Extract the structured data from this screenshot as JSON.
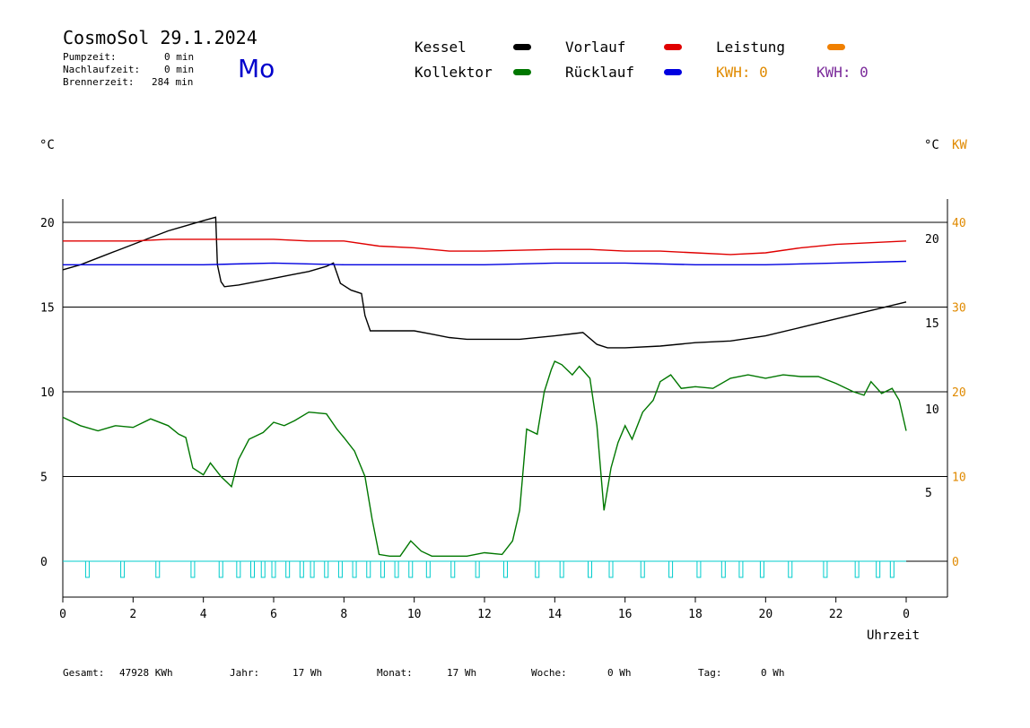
{
  "header": {
    "title": "CosmoSol 29.1.2024",
    "weekday": "Mo",
    "stats": [
      {
        "label": "Pumpzeit:",
        "value": "0 min"
      },
      {
        "label": "Nachlaufzeit:",
        "value": "0 min"
      },
      {
        "label": "Brennerzeit:",
        "value": "284 min"
      }
    ]
  },
  "legend": {
    "kessel": {
      "label": "Kessel",
      "color": "#000000"
    },
    "vorlauf": {
      "label": "Vorlauf",
      "color": "#e00000"
    },
    "leistung": {
      "label": "Leistung",
      "color": "#f08000"
    },
    "kollektor": {
      "label": "Kollektor",
      "color": "#007700"
    },
    "ruecklauf": {
      "label": "Rücklauf",
      "color": "#0000e0"
    },
    "kwh_orange": "KWH: 0",
    "kwh_purple": "KWH: 0"
  },
  "units": {
    "left": "°C",
    "right_c": "°C",
    "right_kw": "KW"
  },
  "footer": [
    {
      "label": "Gesamt:",
      "value": "47928 KWh"
    },
    {
      "label": "Jahr:",
      "value": "17 Wh"
    },
    {
      "label": "Monat:",
      "value": "17 Wh"
    },
    {
      "label": "Woche:",
      "value": "0 Wh"
    },
    {
      "label": "Tag:",
      "value": "0 Wh"
    }
  ],
  "chart_data": {
    "type": "line",
    "xlabel": "Uhrzeit",
    "x_ticks": [
      "0",
      "2",
      "4",
      "6",
      "8",
      "10",
      "12",
      "14",
      "16",
      "18",
      "20",
      "22",
      "0"
    ],
    "xlim": [
      0,
      24
    ],
    "y_left": {
      "ticks": [
        0,
        5,
        10,
        15,
        20
      ],
      "lim": [
        -2,
        22
      ]
    },
    "y_right_c": {
      "ticks": [
        5,
        10,
        15,
        20
      ]
    },
    "y_right_kw": {
      "ticks": [
        0,
        10,
        20,
        30,
        40
      ]
    },
    "series": [
      {
        "name": "Kessel",
        "color": "#000000",
        "points": [
          [
            0,
            17.2
          ],
          [
            0.5,
            17.5
          ],
          [
            1,
            17.9
          ],
          [
            1.5,
            18.3
          ],
          [
            2,
            18.7
          ],
          [
            2.5,
            19.1
          ],
          [
            3,
            19.5
          ],
          [
            3.5,
            19.8
          ],
          [
            4,
            20.1
          ],
          [
            4.35,
            20.3
          ],
          [
            4.4,
            17.5
          ],
          [
            4.5,
            16.5
          ],
          [
            4.6,
            16.2
          ],
          [
            5,
            16.3
          ],
          [
            5.5,
            16.5
          ],
          [
            6,
            16.7
          ],
          [
            6.5,
            16.9
          ],
          [
            7,
            17.1
          ],
          [
            7.5,
            17.4
          ],
          [
            7.7,
            17.6
          ],
          [
            7.9,
            16.4
          ],
          [
            8.2,
            16.0
          ],
          [
            8.5,
            15.8
          ],
          [
            8.6,
            14.5
          ],
          [
            8.75,
            13.6
          ],
          [
            9,
            13.6
          ],
          [
            9.5,
            13.6
          ],
          [
            10,
            13.6
          ],
          [
            10.5,
            13.4
          ],
          [
            11,
            13.2
          ],
          [
            11.5,
            13.1
          ],
          [
            12,
            13.1
          ],
          [
            13,
            13.1
          ],
          [
            14,
            13.3
          ],
          [
            14.8,
            13.5
          ],
          [
            15.2,
            12.8
          ],
          [
            15.5,
            12.6
          ],
          [
            16,
            12.6
          ],
          [
            17,
            12.7
          ],
          [
            18,
            12.9
          ],
          [
            19,
            13.0
          ],
          [
            20,
            13.3
          ],
          [
            21,
            13.8
          ],
          [
            22,
            14.3
          ],
          [
            23,
            14.8
          ],
          [
            24,
            15.3
          ]
        ]
      },
      {
        "name": "Vorlauf",
        "color": "#e00000",
        "points": [
          [
            0,
            18.9
          ],
          [
            2,
            18.9
          ],
          [
            3,
            19.0
          ],
          [
            4,
            19.0
          ],
          [
            5,
            19.0
          ],
          [
            6,
            19.0
          ],
          [
            7,
            18.9
          ],
          [
            8,
            18.9
          ],
          [
            9,
            18.6
          ],
          [
            10,
            18.5
          ],
          [
            11,
            18.3
          ],
          [
            12,
            18.3
          ],
          [
            14,
            18.4
          ],
          [
            15,
            18.4
          ],
          [
            16,
            18.3
          ],
          [
            17,
            18.3
          ],
          [
            18,
            18.2
          ],
          [
            19,
            18.1
          ],
          [
            20,
            18.2
          ],
          [
            21,
            18.5
          ],
          [
            22,
            18.7
          ],
          [
            23,
            18.8
          ],
          [
            24,
            18.9
          ]
        ]
      },
      {
        "name": "Rücklauf",
        "color": "#0000e0",
        "points": [
          [
            0,
            17.5
          ],
          [
            2,
            17.5
          ],
          [
            4,
            17.5
          ],
          [
            6,
            17.6
          ],
          [
            8,
            17.5
          ],
          [
            10,
            17.5
          ],
          [
            12,
            17.5
          ],
          [
            14,
            17.6
          ],
          [
            16,
            17.6
          ],
          [
            18,
            17.5
          ],
          [
            20,
            17.5
          ],
          [
            22,
            17.6
          ],
          [
            24,
            17.7
          ]
        ]
      },
      {
        "name": "Kollektor",
        "color": "#007700",
        "points": [
          [
            0,
            8.5
          ],
          [
            0.5,
            8.0
          ],
          [
            1,
            7.7
          ],
          [
            1.5,
            8.0
          ],
          [
            2,
            7.9
          ],
          [
            2.5,
            8.4
          ],
          [
            3,
            8.0
          ],
          [
            3.3,
            7.5
          ],
          [
            3.5,
            7.3
          ],
          [
            3.7,
            5.5
          ],
          [
            4,
            5.1
          ],
          [
            4.2,
            5.8
          ],
          [
            4.5,
            5.0
          ],
          [
            4.8,
            4.4
          ],
          [
            5,
            6.0
          ],
          [
            5.3,
            7.2
          ],
          [
            5.7,
            7.6
          ],
          [
            6,
            8.2
          ],
          [
            6.3,
            8.0
          ],
          [
            6.6,
            8.3
          ],
          [
            7,
            8.8
          ],
          [
            7.5,
            8.7
          ],
          [
            7.8,
            7.8
          ],
          [
            8,
            7.3
          ],
          [
            8.3,
            6.5
          ],
          [
            8.6,
            5.0
          ],
          [
            8.8,
            2.5
          ],
          [
            9,
            0.4
          ],
          [
            9.3,
            0.3
          ],
          [
            9.6,
            0.3
          ],
          [
            9.9,
            1.2
          ],
          [
            10.2,
            0.6
          ],
          [
            10.5,
            0.3
          ],
          [
            11,
            0.3
          ],
          [
            11.5,
            0.3
          ],
          [
            12,
            0.5
          ],
          [
            12.5,
            0.4
          ],
          [
            12.8,
            1.2
          ],
          [
            13,
            3.0
          ],
          [
            13.2,
            7.8
          ],
          [
            13.5,
            7.5
          ],
          [
            13.7,
            10.0
          ],
          [
            13.9,
            11.3
          ],
          [
            14,
            11.8
          ],
          [
            14.2,
            11.6
          ],
          [
            14.5,
            11.0
          ],
          [
            14.7,
            11.5
          ],
          [
            15,
            10.8
          ],
          [
            15.2,
            8.0
          ],
          [
            15.4,
            3.0
          ],
          [
            15.6,
            5.5
          ],
          [
            15.8,
            7.0
          ],
          [
            16,
            8.0
          ],
          [
            16.2,
            7.2
          ],
          [
            16.5,
            8.8
          ],
          [
            16.8,
            9.5
          ],
          [
            17,
            10.6
          ],
          [
            17.3,
            11.0
          ],
          [
            17.6,
            10.2
          ],
          [
            18,
            10.3
          ],
          [
            18.5,
            10.2
          ],
          [
            19,
            10.8
          ],
          [
            19.5,
            11.0
          ],
          [
            20,
            10.8
          ],
          [
            20.5,
            11.0
          ],
          [
            21,
            10.9
          ],
          [
            21.5,
            10.9
          ],
          [
            22,
            10.5
          ],
          [
            22.5,
            10.0
          ],
          [
            22.8,
            9.8
          ],
          [
            23,
            10.6
          ],
          [
            23.3,
            9.9
          ],
          [
            23.6,
            10.2
          ],
          [
            23.8,
            9.5
          ],
          [
            24,
            7.7
          ]
        ]
      }
    ],
    "pump_pulses_hours": [
      0.7,
      1.7,
      2.7,
      3.7,
      4.5,
      5.0,
      5.4,
      5.7,
      6.0,
      6.4,
      6.8,
      7.1,
      7.5,
      7.9,
      8.3,
      8.7,
      9.1,
      9.5,
      9.9,
      10.4,
      11.1,
      11.8,
      12.6,
      13.5,
      14.2,
      15.0,
      15.6,
      16.5,
      17.3,
      18.1,
      18.8,
      19.3,
      19.9,
      20.7,
      21.7,
      22.6,
      23.2,
      23.6
    ],
    "pump_color": "#00cccc"
  }
}
